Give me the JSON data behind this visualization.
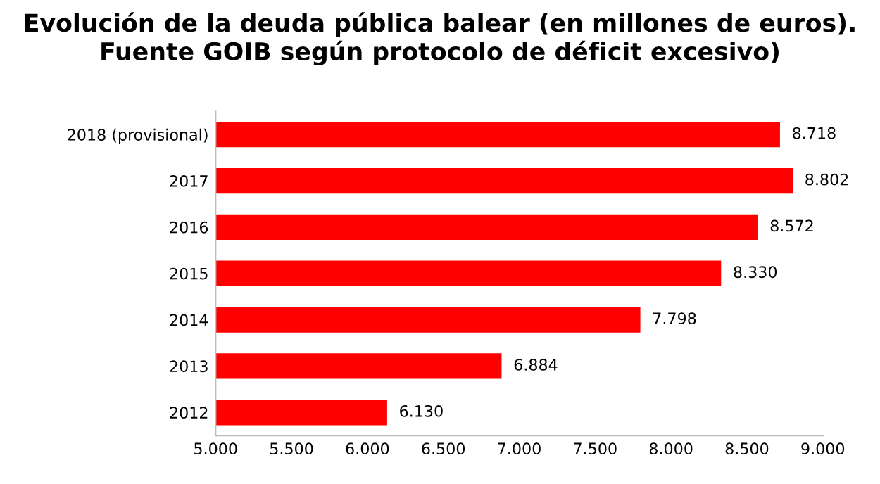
{
  "chart_data": {
    "type": "bar",
    "orientation": "horizontal",
    "title": "Evolución de la deuda pública balear (en millones de euros). Fuente GOIB según protocolo de déficit excesivo)",
    "categories": [
      "2018 (provisional)",
      "2017",
      "2016",
      "2015",
      "2014",
      "2013",
      "2012"
    ],
    "values": [
      8718,
      8802,
      8572,
      8330,
      7798,
      6884,
      6130
    ],
    "value_labels": [
      "8.718",
      "8.802",
      "8.572",
      "8.330",
      "7.798",
      "6.884",
      "6.130"
    ],
    "color": "#ff0000",
    "xlim": [
      5000,
      9000
    ],
    "xticks": [
      {
        "value": 5000,
        "label": "5.000"
      },
      {
        "value": 5500,
        "label": "5.500"
      },
      {
        "value": 6000,
        "label": "6.000"
      },
      {
        "value": 6500,
        "label": "6.500"
      },
      {
        "value": 7000,
        "label": "7.000"
      },
      {
        "value": 7500,
        "label": "7.500"
      },
      {
        "value": 8000,
        "label": "8.000"
      },
      {
        "value": 8500,
        "label": "8.500"
      },
      {
        "value": 9000,
        "label": "9.000"
      }
    ],
    "grid": false,
    "legend": false
  }
}
